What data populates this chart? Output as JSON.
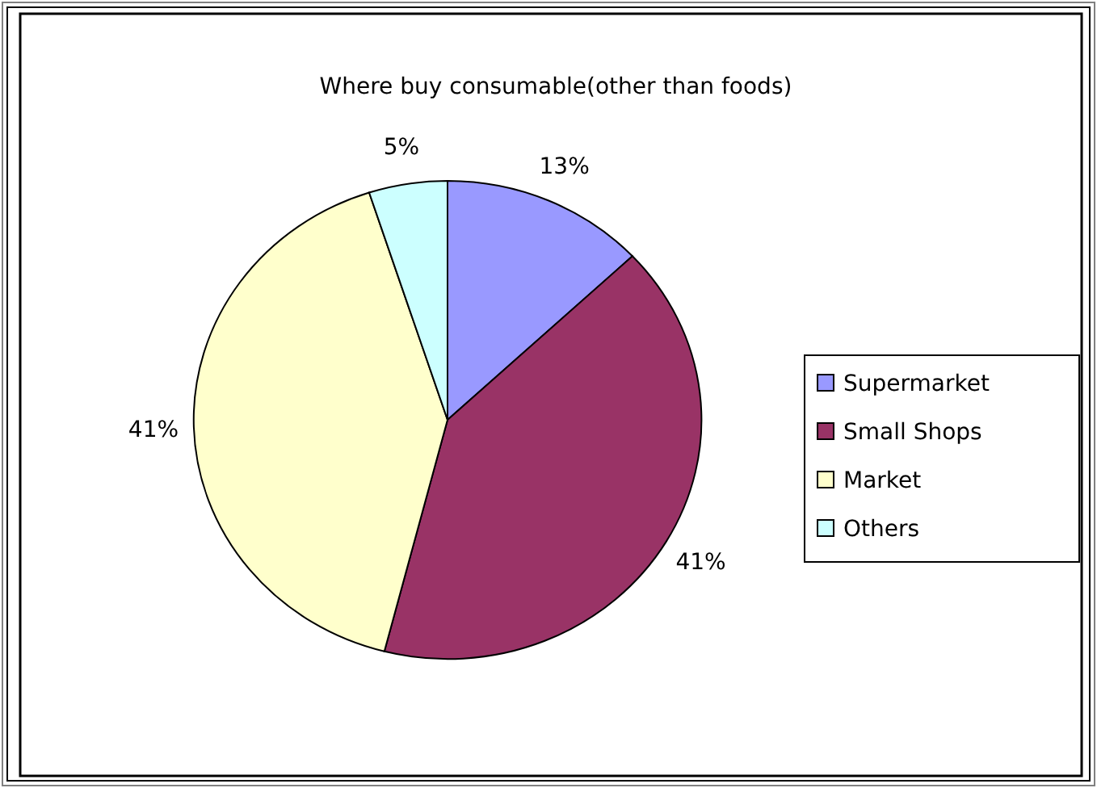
{
  "chart_data": {
    "type": "pie",
    "title": "Where buy consumable(other than foods)",
    "categories": [
      "Supermarket",
      "Small Shops",
      "Market",
      "Others"
    ],
    "values": [
      13,
      41,
      41,
      5
    ],
    "colors": [
      "#9999ff",
      "#993366",
      "#ffffcc",
      "#ccffff"
    ],
    "value_labels": [
      "13%",
      "41%",
      "41%",
      "5%"
    ],
    "legend": "right"
  }
}
